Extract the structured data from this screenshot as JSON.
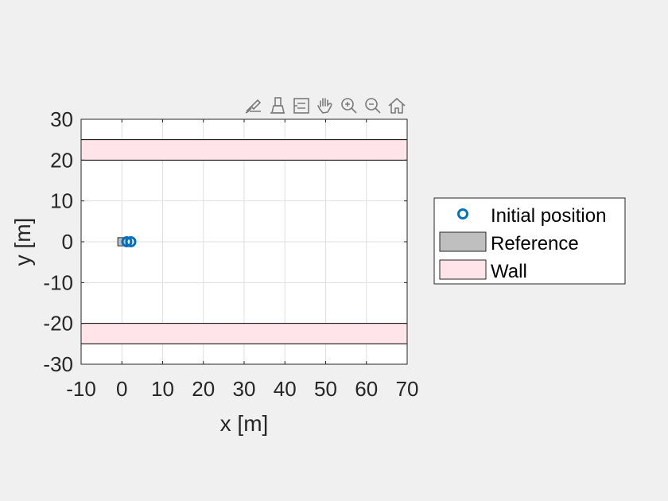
{
  "colors": {
    "background": "#f0f0f0",
    "axes_bg": "#ffffff",
    "grid": "#dfdfdf",
    "marker": "#0072bd",
    "reference_fill": "#bfbfbf",
    "wall_fill": "#ffe4e9",
    "axis_color": "#262626"
  },
  "toolbar": {
    "icons": [
      "brush-edit-icon",
      "data-tips-icon",
      "legend-toggle-icon",
      "pan-hand-icon",
      "zoom-in-icon",
      "zoom-out-icon",
      "home-icon"
    ]
  },
  "chart_data": {
    "type": "scatter",
    "title": "",
    "xlabel": "x [m]",
    "ylabel": "y [m]",
    "xlim": [
      -10,
      70
    ],
    "ylim": [
      -30,
      30
    ],
    "xticks": [
      -10,
      0,
      10,
      20,
      30,
      40,
      50,
      60,
      70
    ],
    "yticks": [
      -30,
      -20,
      -10,
      0,
      10,
      20,
      30
    ],
    "grid": true,
    "legend_position": "outside-right",
    "walls": [
      {
        "x": [
          -10,
          70
        ],
        "y": [
          20,
          25
        ]
      },
      {
        "x": [
          -10,
          70
        ],
        "y": [
          -25,
          -20
        ]
      }
    ],
    "reference": {
      "x": [
        -1,
        1
      ],
      "y": [
        -1,
        1
      ]
    },
    "series": [
      {
        "name": "Initial position",
        "marker": "o",
        "x": [
          1.2,
          2.2
        ],
        "y": [
          0,
          0
        ]
      }
    ],
    "legend": [
      {
        "label": "Initial position",
        "kind": "marker"
      },
      {
        "label": "Reference",
        "kind": "patch-gray"
      },
      {
        "label": "Wall",
        "kind": "patch-pink"
      }
    ]
  }
}
